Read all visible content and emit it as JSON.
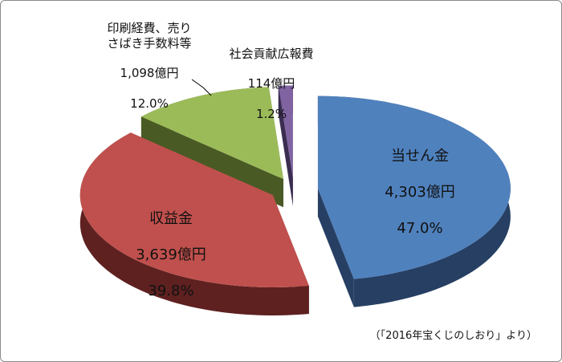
{
  "chart_data": {
    "type": "pie3d",
    "categories": [
      "当せん金",
      "収益金",
      "印刷経費、売り\nさばき手数料等",
      "社会貢献広報費"
    ],
    "values": [
      47.0,
      39.8,
      12.0,
      1.2
    ],
    "value_labels": [
      "47.0%",
      "39.8%",
      "12.0%",
      "1.2%"
    ],
    "amount_labels": [
      "4,303億円",
      "3,639億円",
      "1,098億円",
      "114億円"
    ],
    "colors": [
      "#4f81bd",
      "#c0504d",
      "#9bbb59",
      "#8064a2"
    ],
    "side_colors": [
      "#263f63",
      "#5e2120",
      "#4a5a24",
      "#3a2d50"
    ],
    "source": "（「2016年宝くじのしおり」より）"
  }
}
